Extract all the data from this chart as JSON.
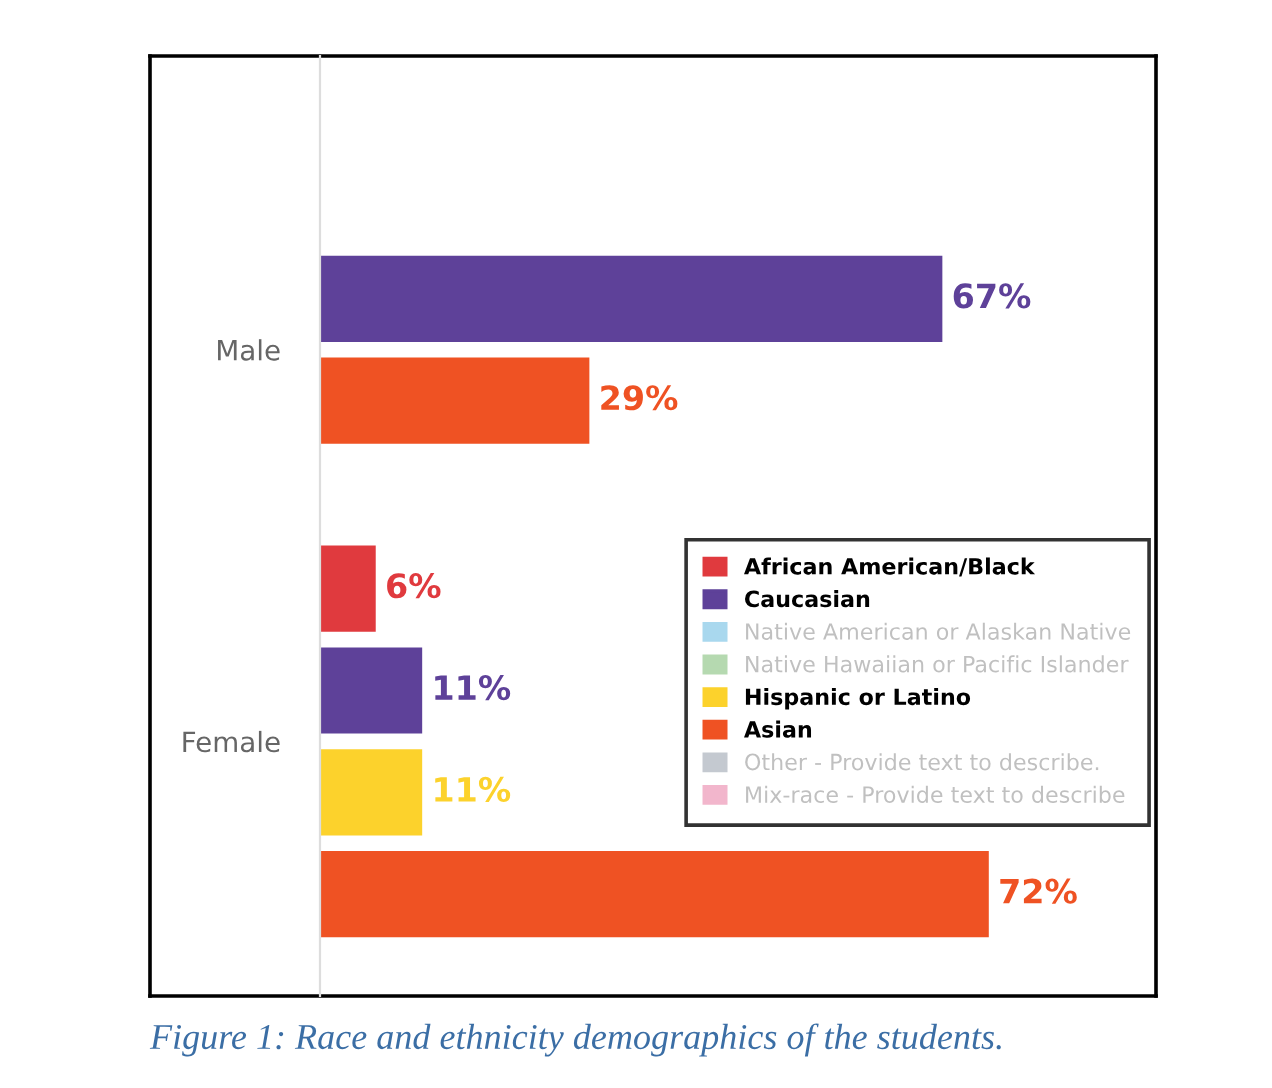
{
  "chart_data": {
    "type": "bar",
    "orientation": "horizontal",
    "categories": [
      "Male",
      "Female"
    ],
    "xlim": [
      0,
      90
    ],
    "legend": "lower right",
    "grid": false,
    "series": [
      {
        "name": "African American/Black",
        "color": "#e03a3e",
        "values": [
          null,
          6
        ],
        "value_labels": [
          null,
          "6%"
        ]
      },
      {
        "name": "Caucasian",
        "color": "#5e4199",
        "values": [
          67,
          11
        ],
        "value_labels": [
          "67%",
          "11%"
        ]
      },
      {
        "name": "Native American or Alaskan Native",
        "color": "#a9d8ee",
        "values": [
          null,
          null
        ]
      },
      {
        "name": "Native Hawaiian or Pacific Islander",
        "color": "#b5d9b0",
        "values": [
          null,
          null
        ]
      },
      {
        "name": "Hispanic or Latino",
        "color": "#fcd22c",
        "values": [
          null,
          11
        ],
        "value_labels": [
          null,
          "11%"
        ]
      },
      {
        "name": "Asian",
        "color": "#ef5223",
        "values": [
          29,
          72
        ],
        "value_labels": [
          "29%",
          "72%"
        ]
      },
      {
        "name": "Other - Provide text to describe.",
        "color": "#c4c9d0",
        "values": [
          null,
          null
        ]
      },
      {
        "name": "Mix-race - Provide text to describe",
        "color": "#f2b6cc",
        "values": [
          null,
          null
        ]
      }
    ],
    "annotations": [
      "Figure 1: Race and ethnicity demographics of the students."
    ]
  }
}
